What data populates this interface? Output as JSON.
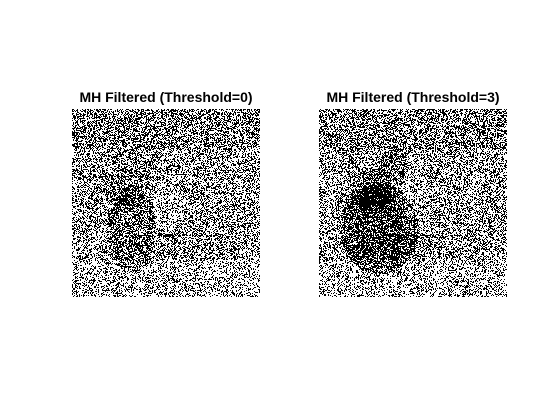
{
  "figure": {
    "panels": [
      {
        "title": "MH Filtered (Threshold=0)",
        "pixel_style": "binary-noise",
        "foreground_color": "#000000",
        "background_color": "#ffffff"
      },
      {
        "title": "MH Filtered (Threshold=3)",
        "pixel_style": "binary-noise",
        "foreground_color": "#000000",
        "background_color": "#ffffff"
      }
    ]
  }
}
